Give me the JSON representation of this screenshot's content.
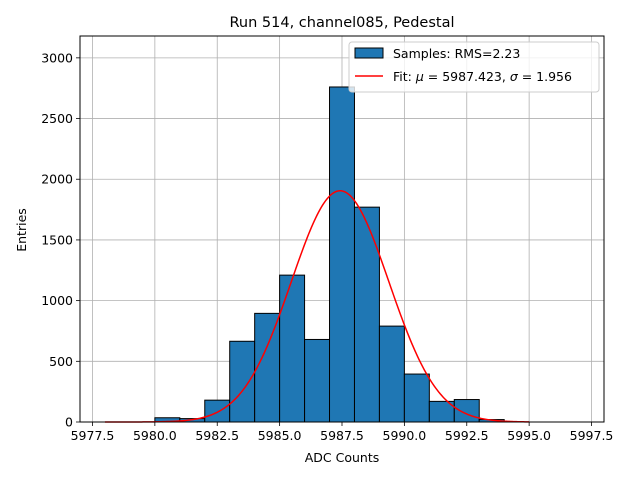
{
  "chart_data": {
    "type": "bar",
    "title": "Run 514, channel085, Pedestal",
    "xlabel": "ADC Counts",
    "ylabel": "Entries",
    "xlim": [
      5977.0,
      5998.0
    ],
    "ylim": [
      0,
      3180
    ],
    "grid": true,
    "xticks": [
      5977.5,
      5980.0,
      5982.5,
      5985.0,
      5987.5,
      5990.0,
      5992.5,
      5995.0,
      5997.5
    ],
    "xtick_labels": [
      "5977.5",
      "5980.0",
      "5982.5",
      "5985.0",
      "5987.5",
      "5990.0",
      "5992.5",
      "5995.0",
      "5997.5"
    ],
    "yticks": [
      0,
      500,
      1000,
      1500,
      2000,
      2500,
      3000
    ],
    "ytick_labels": [
      "0",
      "500",
      "1000",
      "1500",
      "2000",
      "2500",
      "3000"
    ],
    "histogram": {
      "bin_edges": [
        5980.0,
        5981.0,
        5982.0,
        5983.0,
        5984.0,
        5985.0,
        5986.0,
        5987.0,
        5988.0,
        5989.0,
        5990.0,
        5991.0,
        5992.0,
        5993.0,
        5994.0
      ],
      "counts": [
        35,
        28,
        180,
        665,
        895,
        1210,
        680,
        2760,
        1770,
        790,
        395,
        170,
        185,
        20
      ],
      "color": "#1f77b4",
      "edgecolor": "#000000"
    },
    "fit": {
      "mu": 5987.423,
      "sigma": 1.956,
      "peak": 1905,
      "x_range": [
        5978.0,
        5995.0
      ],
      "color": "#ff0000"
    },
    "legend": {
      "position": "upper right",
      "entries": [
        {
          "label": "Samples: RMS=2.23",
          "kind": "patch"
        },
        {
          "label_prefix": "Fit: ",
          "label_mu_symbol": "μ",
          "label_mu_value": " = 5987.423, ",
          "label_sigma_symbol": "σ",
          "label_sigma_value": " = 1.956",
          "kind": "line"
        }
      ]
    }
  }
}
